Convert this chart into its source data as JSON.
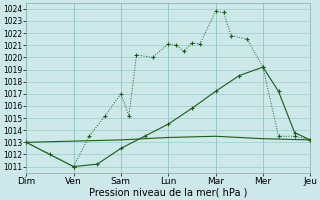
{
  "background_color": "#cce8e8",
  "plot_bg_color": "#cce8e8",
  "grid_color": "#99cccc",
  "line_color": "#1a5c1a",
  "xlabel_text": "Pression niveau de la mer( hPa )",
  "ylim": [
    1010.5,
    1024.5
  ],
  "xlim": [
    0,
    6
  ],
  "yticks": [
    1011,
    1012,
    1013,
    1014,
    1015,
    1016,
    1017,
    1018,
    1019,
    1020,
    1021,
    1022,
    1023,
    1024
  ],
  "xtick_positions": [
    0,
    1,
    2,
    3,
    4,
    5,
    6
  ],
  "xtick_labels": [
    "Dim",
    "Ven",
    "Sam",
    "Lun",
    "Mar",
    "Mer",
    "Jeu"
  ],
  "line1_x": [
    0,
    1.0,
    1.33,
    1.67,
    2.0,
    2.17,
    2.33,
    2.67,
    3.0,
    3.17,
    3.33,
    3.5,
    3.67,
    4.0,
    4.17,
    4.33,
    4.67,
    5.0,
    5.33,
    5.67,
    6.0
  ],
  "line1_y": [
    1013.0,
    1011.0,
    1013.5,
    1015.2,
    1017.0,
    1015.2,
    1020.2,
    1020.0,
    1021.1,
    1021.0,
    1020.5,
    1021.2,
    1021.1,
    1023.8,
    1023.7,
    1021.8,
    1021.5,
    1019.2,
    1013.5,
    1013.5,
    1013.2
  ],
  "line2_x": [
    0,
    1,
    2,
    3,
    4,
    5,
    6
  ],
  "line2_y": [
    1013.0,
    1013.1,
    1013.2,
    1013.4,
    1013.5,
    1013.3,
    1013.2
  ],
  "line3_x": [
    0,
    0.5,
    1.0,
    1.5,
    2.0,
    2.5,
    3.0,
    3.5,
    4.0,
    4.5,
    5.0,
    5.33,
    5.67,
    6.0
  ],
  "line3_y": [
    1013.0,
    1012.0,
    1011.0,
    1011.2,
    1012.5,
    1013.5,
    1014.5,
    1015.8,
    1017.2,
    1018.5,
    1019.2,
    1017.2,
    1013.8,
    1013.2
  ],
  "xlabel_fontsize": 7,
  "ytick_fontsize": 5.5,
  "xtick_fontsize": 6.5
}
